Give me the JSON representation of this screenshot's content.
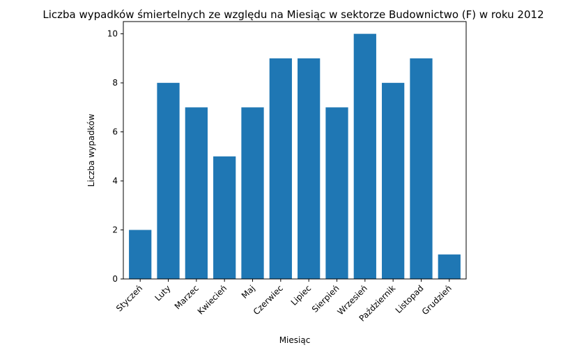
{
  "chart_data": {
    "type": "bar",
    "title": "Liczba wypadków śmiertelnych ze względu na Miesiąc w sektorze Budownictwo  (F)    w roku 2012",
    "xlabel": "Miesiąc",
    "ylabel": "Liczba wypadków",
    "categories": [
      "Styczeń",
      "Luty",
      "Marzec",
      "Kwiecień",
      "Maj",
      "Czerwiec",
      "Lipiec",
      "Sierpień",
      "Wrzesień",
      "Październik",
      "Listopad",
      "Grudzień"
    ],
    "values": [
      2,
      8,
      7,
      5,
      7,
      9,
      9,
      7,
      10,
      8,
      9,
      1
    ],
    "ylim": [
      0,
      10.5
    ],
    "yticks": [
      0,
      2,
      4,
      6,
      8,
      10
    ],
    "grid": false,
    "legend": "none",
    "bar_color": "#1f77b4"
  }
}
